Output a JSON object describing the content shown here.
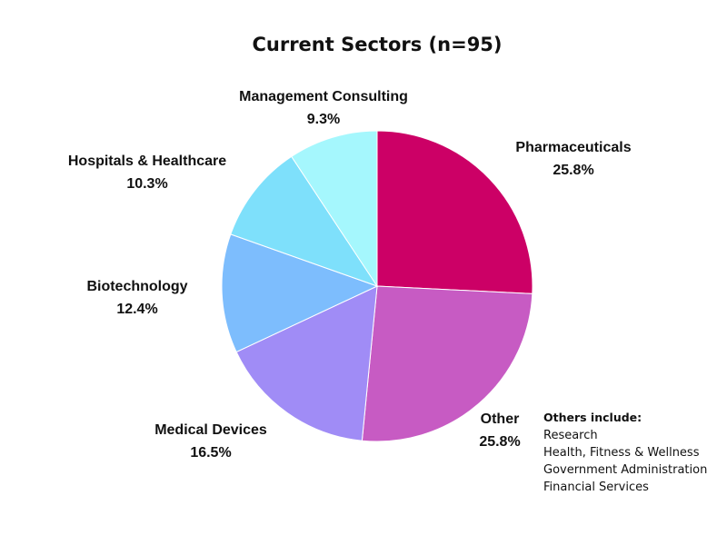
{
  "chart_data": {
    "type": "pie",
    "title": "Current Sectors  (n=95)",
    "start_angle_deg": 0,
    "direction": "clockwise",
    "legend": "none",
    "slices": [
      {
        "label": "Pharmaceuticals",
        "value": 25.8,
        "value_label": "25.8%",
        "color": "#cc0066"
      },
      {
        "label": "Other",
        "value": 25.8,
        "value_label": "25.8%",
        "color": "#c75bc3"
      },
      {
        "label": "Medical Devices",
        "value": 16.5,
        "value_label": "16.5%",
        "color": "#a08cf6"
      },
      {
        "label": "Biotechnology",
        "value": 12.4,
        "value_label": "12.4%",
        "color": "#7dbdfd"
      },
      {
        "label": "Hospitals & Healthcare",
        "value": 10.3,
        "value_label": "10.3%",
        "color": "#7ee0fb"
      },
      {
        "label": "Management Consulting",
        "value": 9.3,
        "value_label": "9.3%",
        "color": "#a5f7fd"
      }
    ],
    "annotation": {
      "title": "Others include:",
      "items": [
        "Research",
        "Health, Fitness & Wellness",
        "Government Administration",
        "Financial Services"
      ]
    }
  }
}
